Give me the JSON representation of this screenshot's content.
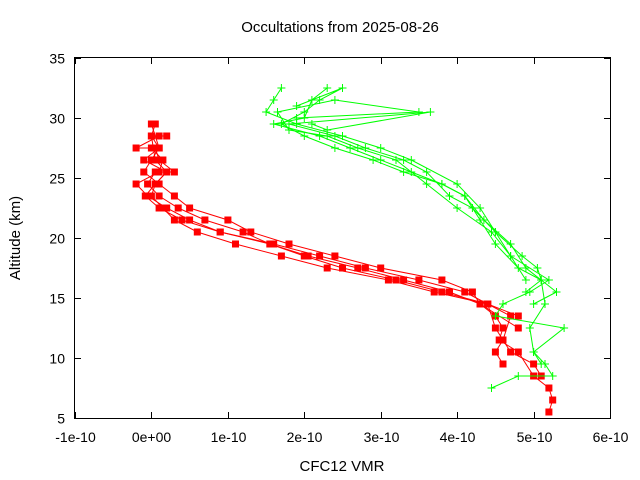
{
  "chart_data": {
    "type": "line",
    "title": "Occultations from 2025-08-26",
    "xlabel": "CFC12 VMR",
    "ylabel": "Altitude (km)",
    "xlim": [
      -1e-10,
      6e-10
    ],
    "ylim": [
      5,
      35
    ],
    "x_ticks": [
      -1e-10,
      0,
      1e-10,
      2e-10,
      3e-10,
      4e-10,
      5e-10,
      6e-10
    ],
    "x_tick_labels": [
      "-1e-10",
      "0e+00",
      "1e-10",
      "2e-10",
      "3e-10",
      "4e-10",
      "5e-10",
      "6e-10"
    ],
    "y_ticks": [
      5,
      10,
      15,
      20,
      25,
      30,
      35
    ],
    "y_tick_labels": [
      "5",
      "10",
      "15",
      "20",
      "25",
      "30",
      "35"
    ],
    "grid": false,
    "legend": "none",
    "series": [
      {
        "color": "#ff0000",
        "marker": "square",
        "x": [
          5.2e-10,
          5.25e-10,
          5.2e-10,
          5e-10,
          4.8e-10,
          4.55e-10,
          4.6e-10,
          4.5e-10,
          4.3e-10,
          4.2e-10,
          3.8e-10,
          3e-10,
          2.4e-10,
          1.8e-10,
          1.3e-10,
          1e-10,
          5e-11,
          3e-11,
          1e-11,
          -1e-11,
          0.0,
          1e-11,
          0.0
        ],
        "y": [
          5.5,
          6.5,
          7.5,
          8.5,
          10.5,
          11.5,
          12.5,
          13.5,
          14.5,
          15.5,
          16.5,
          17.5,
          18.5,
          19.5,
          20.5,
          21.5,
          22.5,
          23.5,
          24.5,
          25.5,
          26.5,
          27.5,
          28.5
        ]
      },
      {
        "color": "#ff0000",
        "marker": "square",
        "x": [
          5.1e-10,
          5e-10,
          4.7e-10,
          4.6e-10,
          4.5e-10,
          4.4e-10,
          4.1e-10,
          3.5e-10,
          2.8e-10,
          2.2e-10,
          1.6e-10,
          9e-11,
          5e-11,
          2e-11,
          -5e-12,
          -2e-11,
          1e-11,
          1.5e-11,
          0.0
        ],
        "y": [
          8.5,
          9.5,
          10.5,
          11.5,
          12.5,
          14.5,
          15.5,
          16.5,
          17.5,
          18.5,
          19.5,
          20.5,
          21.5,
          22.5,
          23.5,
          24.5,
          25.5,
          26.5,
          27.5
        ]
      },
      {
        "color": "#ff0000",
        "marker": "square",
        "x": [
          4.6e-10,
          4.5e-10,
          4.6e-10,
          4.7e-10,
          4.4e-10,
          3.7e-10,
          3.1e-10,
          2.3e-10,
          1.7e-10,
          1.1e-10,
          6e-11,
          3e-11,
          1.5e-11,
          0.0,
          5e-12,
          2e-11,
          5e-12,
          0.0,
          5e-12
        ],
        "y": [
          9.5,
          10.5,
          11.5,
          13.5,
          14.5,
          15.5,
          16.5,
          17.5,
          18.5,
          19.5,
          20.5,
          21.5,
          22.5,
          23.5,
          24.5,
          25.5,
          26.5,
          28.5,
          29.5
        ]
      },
      {
        "color": "#ff0000",
        "marker": "square",
        "x": [
          4.8e-10,
          4.3e-10,
          3.9e-10,
          3.3e-10,
          2.7e-10,
          2.05e-10,
          1.55e-10,
          9e-11,
          4e-11,
          1e-11,
          -8e-12,
          5e-12,
          2e-11,
          -1e-11,
          1e-11,
          0.0
        ],
        "y": [
          12.5,
          14.5,
          15.5,
          16.5,
          17.5,
          18.5,
          19.5,
          20.5,
          21.5,
          22.5,
          23.5,
          24.5,
          25.5,
          26.5,
          27.5,
          29.5
        ]
      },
      {
        "color": "#ff0000",
        "marker": "square",
        "x": [
          4.8e-10,
          4.4e-10,
          3.8e-10,
          3.2e-10,
          2.5e-10,
          2e-10,
          1.55e-10,
          1.2e-10,
          7e-11,
          3.5e-11,
          1e-11,
          -5e-12,
          5e-12,
          3e-11,
          1e-11,
          5e-12,
          1e-11,
          -2e-11,
          1e-11,
          2e-11
        ],
        "y": [
          13.5,
          14.5,
          15.5,
          16.5,
          17.5,
          18.5,
          19.5,
          20.5,
          21.5,
          22.5,
          23.5,
          24.5,
          25.5,
          25.5,
          26.5,
          27.5,
          27.5,
          27.5,
          28.5,
          28.5
        ]
      },
      {
        "color": "#00ff00",
        "marker": "plus",
        "x": [
          4.45e-10,
          4.8e-10,
          5.25e-10,
          5.15e-10,
          5e-10,
          4.95e-10,
          5.15e-10,
          5.1e-10,
          5.05e-10,
          4.85e-10,
          4.5e-10,
          4.3e-10,
          4e-10,
          3.4e-10,
          3e-10,
          2.5e-10,
          1.9e-10,
          1.5e-10,
          1.6e-10,
          1.7e-10
        ],
        "y": [
          7.5,
          8.5,
          8.5,
          9.5,
          10.5,
          12.5,
          14.5,
          16.5,
          17.5,
          18.5,
          20.5,
          22.5,
          24.5,
          26.5,
          27.5,
          28.5,
          29.5,
          30.5,
          31.5,
          32.5
        ]
      },
      {
        "color": "#00ff00",
        "marker": "plus",
        "x": [
          5.1e-10,
          5e-10,
          5.4e-10,
          4.5e-10,
          4.6e-10,
          4.95e-10,
          5.2e-10,
          4.7e-10,
          4.45e-10,
          4e-10,
          3.6e-10,
          3.2e-10,
          2.7e-10,
          2.3e-10,
          1.8e-10,
          1.65e-10,
          2.4e-10,
          3.5e-10,
          1.9e-10
        ],
        "y": [
          9.5,
          10.5,
          12.5,
          13.5,
          14.5,
          15.5,
          16.5,
          18.5,
          20.5,
          22.5,
          24.5,
          26.5,
          27.5,
          28.5,
          29.0,
          30.5,
          31.5,
          30.5,
          30.0
        ]
      },
      {
        "color": "#00ff00",
        "marker": "plus",
        "x": [
          5e-10,
          5.3e-10,
          4.9e-10,
          4.7e-10,
          4.35e-10,
          4.1e-10,
          3.8e-10,
          3.3e-10,
          2.9e-10,
          2.4e-10,
          2e-10,
          1.7e-10,
          2e-10,
          2.2e-10,
          2.5e-10,
          1.9e-10
        ],
        "y": [
          14.5,
          15.5,
          17.5,
          19.5,
          21.5,
          23.5,
          24.5,
          25.5,
          26.5,
          27.5,
          28.5,
          29.5,
          30.5,
          31.5,
          32.5,
          31.0
        ]
      },
      {
        "color": "#00ff00",
        "marker": "plus",
        "x": [
          4.9e-10,
          5.1e-10,
          4.8e-10,
          4.5e-10,
          4.3e-10,
          4.1e-10,
          3.8e-10,
          3.4e-10,
          3e-10,
          2.6e-10,
          2.2e-10,
          1.6e-10,
          2e-10,
          2.1e-10,
          2.3e-10
        ],
        "y": [
          15.5,
          16.5,
          17.5,
          19.5,
          21.5,
          23.5,
          24.5,
          25.5,
          26.5,
          27.5,
          28.5,
          29.5,
          30.0,
          31.5,
          32.5
        ]
      },
      {
        "color": "#00ff00",
        "marker": "plus",
        "x": [
          4.9e-10,
          4.7e-10,
          4.5e-10,
          4.2e-10,
          3.9e-10,
          3.6e-10,
          3.3e-10,
          2.8e-10,
          2.4e-10,
          1.8e-10,
          3.65e-10,
          2.3e-10,
          2.1e-10
        ],
        "y": [
          16.5,
          18.5,
          20.5,
          22.5,
          23.5,
          25.5,
          26.5,
          27.5,
          28.5,
          29.5,
          30.5,
          29.0,
          29.5
        ]
      }
    ]
  }
}
